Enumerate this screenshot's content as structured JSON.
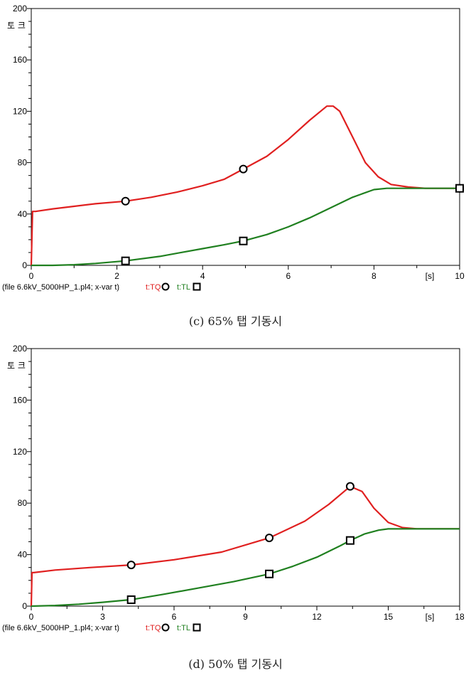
{
  "chart_data": [
    {
      "type": "line",
      "caption": "(c) 65% 탭 기동시",
      "ylabel": "토 크",
      "xunit": "[s]",
      "footer": "(file 6.6kV_5000HP_1.pl4; x-var t)",
      "xlim": [
        0,
        10
      ],
      "ylim": [
        0,
        200
      ],
      "xticks": [
        0,
        2,
        4,
        6,
        8,
        10
      ],
      "yticks": [
        0,
        40,
        80,
        120,
        160,
        200
      ],
      "series": [
        {
          "name": "t:TQ",
          "color": "#e02020",
          "marker": "circle",
          "marker_x": [
            2.2,
            4.95,
            10.0
          ],
          "x": [
            0,
            0.03,
            0.1,
            0.5,
            1.0,
            1.5,
            2.2,
            2.8,
            3.4,
            4.0,
            4.5,
            4.95,
            5.5,
            6.0,
            6.5,
            6.9,
            7.05,
            7.2,
            7.5,
            7.8,
            8.1,
            8.4,
            8.8,
            9.2,
            10.0
          ],
          "y": [
            0,
            42,
            42,
            44,
            46,
            48,
            50,
            53,
            57,
            62,
            67,
            75,
            85,
            98,
            113,
            124,
            124,
            120,
            100,
            80,
            69,
            63,
            61,
            60,
            60
          ]
        },
        {
          "name": "t:TL",
          "color": "#208020",
          "marker": "square",
          "marker_x": [
            2.2,
            4.95,
            10.0
          ],
          "x": [
            0,
            0.5,
            1.0,
            1.5,
            2.2,
            3.0,
            3.5,
            4.0,
            4.5,
            4.95,
            5.5,
            6.0,
            6.5,
            7.0,
            7.5,
            8.0,
            8.3,
            8.6,
            9.0,
            10.0
          ],
          "y": [
            0,
            0,
            0.5,
            1.5,
            3.5,
            7,
            10,
            13,
            16,
            19,
            24,
            30,
            37,
            45,
            53,
            59,
            60,
            60,
            60,
            60
          ]
        }
      ]
    },
    {
      "type": "line",
      "caption": "(d) 50% 탭 기동시",
      "ylabel": "토 크",
      "xunit": "[s]",
      "footer": "(file 6.6kV_5000HP_1.pl4; x-var t)",
      "xlim": [
        0,
        18
      ],
      "ylim": [
        0,
        200
      ],
      "xticks": [
        0,
        3,
        6,
        9,
        12,
        15,
        18
      ],
      "yticks": [
        0,
        40,
        80,
        120,
        160,
        200
      ],
      "series": [
        {
          "name": "t:TQ",
          "color": "#e02020",
          "marker": "circle",
          "marker_x": [
            4.2,
            10.0,
            13.4
          ],
          "x": [
            0,
            0.03,
            0.1,
            1.0,
            2.5,
            4.2,
            6.0,
            8.0,
            10.0,
            11.5,
            12.5,
            13.4,
            13.9,
            14.4,
            15.0,
            15.6,
            16.2,
            18.0
          ],
          "y": [
            0,
            26,
            26,
            28,
            30,
            32,
            36,
            42,
            53,
            66,
            79,
            93,
            89,
            76,
            65,
            61,
            60,
            60
          ]
        },
        {
          "name": "t:TL",
          "color": "#208020",
          "marker": "square",
          "marker_x": [
            4.2,
            10.0,
            13.4
          ],
          "x": [
            0,
            1.0,
            2.0,
            3.0,
            4.2,
            5.5,
            7.0,
            8.5,
            10.0,
            11.0,
            12.0,
            13.0,
            13.4,
            14.0,
            14.6,
            15.0,
            18.0
          ],
          "y": [
            0,
            0.5,
            1.5,
            3,
            5,
            9,
            14,
            19,
            25,
            31,
            38,
            47,
            51,
            56,
            59,
            60,
            60
          ]
        }
      ]
    }
  ]
}
